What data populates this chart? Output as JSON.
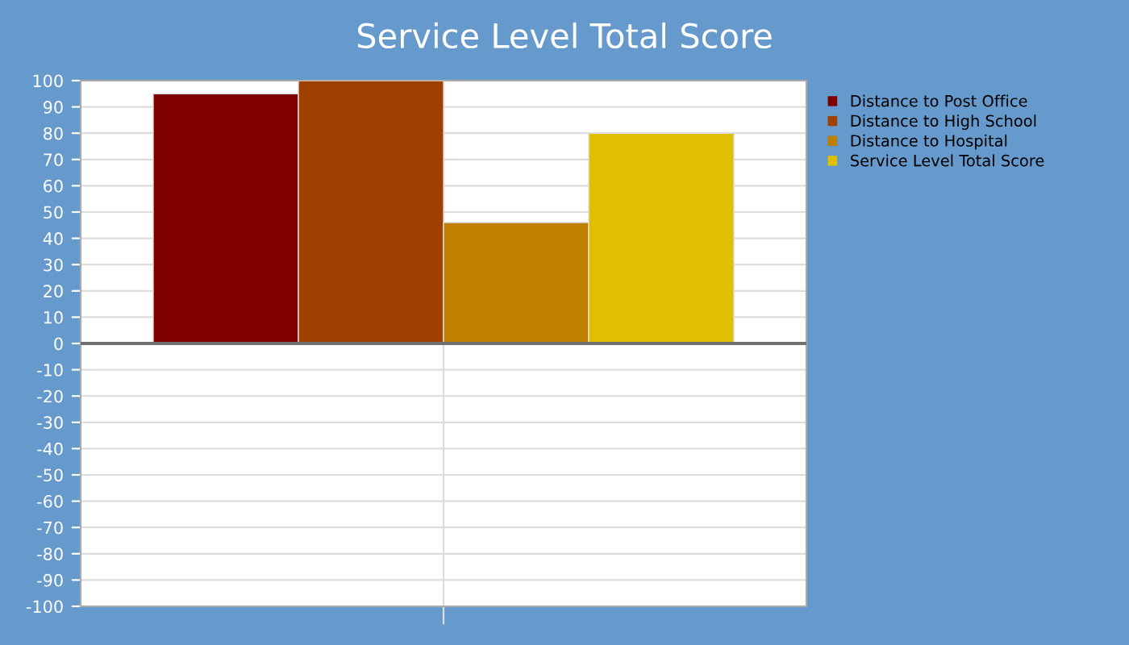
{
  "chart_data": {
    "type": "bar",
    "title": "Service Level Total Score",
    "categories": [
      null
    ],
    "series": [
      {
        "name": "Distance to Post Office",
        "color": "#800000",
        "values": [
          95
        ]
      },
      {
        "name": "Distance to High School",
        "color": "#9e4100",
        "values": [
          100
        ]
      },
      {
        "name": "Distance to Hospital",
        "color": "#bf7f00",
        "values": [
          46
        ]
      },
      {
        "name": "Service Level Total Score",
        "color": "#dfbf00",
        "values": [
          80
        ]
      }
    ],
    "ylim": [
      -100,
      100
    ],
    "yticks": [
      -100,
      -90,
      -80,
      -70,
      -60,
      -50,
      -40,
      -30,
      -20,
      -10,
      0,
      10,
      20,
      30,
      40,
      50,
      60,
      70,
      80,
      90,
      100
    ],
    "grid": true,
    "legend": "right"
  }
}
